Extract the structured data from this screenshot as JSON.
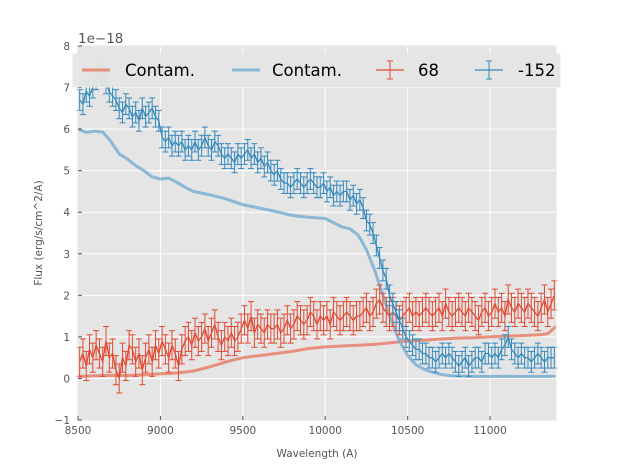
{
  "chart_data": {
    "type": "line",
    "title": "",
    "xlabel": "Wavelength (A)",
    "ylabel": "Flux (erg/s/cm^2/A)",
    "y_offset_label": "1e−18",
    "xlim": [
      8500,
      11400
    ],
    "ylim": [
      -1,
      8
    ],
    "y_scale_exponent": -18,
    "grid": true,
    "legend_placement": "top",
    "x_ticks": [
      8500,
      9000,
      9500,
      10000,
      10500,
      11000
    ],
    "y_ticks": [
      -1,
      0,
      1,
      2,
      3,
      4,
      5,
      6,
      7,
      8
    ],
    "series": [
      {
        "name": "Contam.",
        "kind": "line",
        "color": "#E5806A",
        "x": [
          8500,
          8650,
          8800,
          8950,
          9100,
          9200,
          9300,
          9400,
          9500,
          9600,
          9700,
          9800,
          9900,
          10000,
          10100,
          10200,
          10300,
          10400,
          10500,
          10600,
          10700,
          10800,
          10900,
          11000,
          11100,
          11200,
          11300,
          11350,
          11400
        ],
        "y": [
          0.05,
          0.07,
          0.07,
          0.1,
          0.13,
          0.18,
          0.28,
          0.4,
          0.5,
          0.55,
          0.6,
          0.65,
          0.72,
          0.76,
          0.78,
          0.8,
          0.82,
          0.86,
          0.9,
          0.92,
          0.95,
          0.97,
          0.98,
          1.0,
          1.02,
          1.03,
          1.05,
          1.08,
          1.25
        ]
      },
      {
        "name": "Contam.",
        "kind": "line",
        "color": "#7BAFD4",
        "x": [
          8500,
          8550,
          8600,
          8650,
          8700,
          8750,
          8800,
          8850,
          8900,
          8950,
          9000,
          9050,
          9100,
          9150,
          9200,
          9300,
          9400,
          9500,
          9600,
          9700,
          9800,
          9900,
          10000,
          10050,
          10100,
          10150,
          10200,
          10250,
          10300,
          10350,
          10400,
          10450,
          10500,
          10550,
          10600,
          10650,
          10700,
          10750,
          10800,
          10900,
          11000,
          11100,
          11200,
          11300,
          11400
        ],
        "y": [
          6.0,
          5.92,
          5.95,
          5.93,
          5.7,
          5.4,
          5.28,
          5.12,
          5.0,
          4.85,
          4.8,
          4.82,
          4.72,
          4.6,
          4.5,
          4.42,
          4.32,
          4.18,
          4.1,
          4.02,
          3.92,
          3.88,
          3.85,
          3.75,
          3.65,
          3.6,
          3.45,
          3.1,
          2.6,
          2.0,
          1.4,
          0.9,
          0.55,
          0.33,
          0.22,
          0.15,
          0.1,
          0.07,
          0.06,
          0.05,
          0.05,
          0.05,
          0.05,
          0.05,
          0.05
        ]
      },
      {
        "name": "68",
        "kind": "errorbar",
        "color": "#E24A33",
        "x": [
          8510,
          8530,
          8550,
          8570,
          8590,
          8610,
          8630,
          8650,
          8670,
          8690,
          8710,
          8730,
          8750,
          8770,
          8790,
          8810,
          8830,
          8850,
          8870,
          8890,
          8910,
          8930,
          8950,
          8970,
          8990,
          9010,
          9030,
          9050,
          9070,
          9090,
          9110,
          9130,
          9150,
          9170,
          9190,
          9210,
          9230,
          9250,
          9270,
          9290,
          9310,
          9330,
          9350,
          9370,
          9390,
          9410,
          9430,
          9450,
          9470,
          9490,
          9510,
          9530,
          9550,
          9570,
          9590,
          9610,
          9630,
          9650,
          9670,
          9690,
          9710,
          9730,
          9750,
          9770,
          9790,
          9810,
          9830,
          9850,
          9870,
          9890,
          9910,
          9930,
          9950,
          9970,
          9990,
          10010,
          10030,
          10050,
          10070,
          10090,
          10110,
          10130,
          10150,
          10170,
          10190,
          10210,
          10230,
          10250,
          10270,
          10290,
          10310,
          10330,
          10350,
          10370,
          10390,
          10410,
          10430,
          10450,
          10470,
          10490,
          10510,
          10530,
          10550,
          10570,
          10590,
          10610,
          10630,
          10650,
          10670,
          10690,
          10710,
          10730,
          10750,
          10770,
          10790,
          10810,
          10830,
          10850,
          10870,
          10890,
          10910,
          10930,
          10950,
          10970,
          10990,
          11010,
          11030,
          11050,
          11070,
          11090,
          11110,
          11130,
          11150,
          11170,
          11190,
          11210,
          11230,
          11250,
          11270,
          11290,
          11310,
          11330,
          11350,
          11370,
          11390
        ],
        "y": [
          0.4,
          0.6,
          0.3,
          0.7,
          0.5,
          0.8,
          0.6,
          0.4,
          0.9,
          0.5,
          0.6,
          0.2,
          0.0,
          0.5,
          0.3,
          0.8,
          0.7,
          0.4,
          0.6,
          0.2,
          0.5,
          0.7,
          0.4,
          0.8,
          0.6,
          0.9,
          0.7,
          0.5,
          0.8,
          0.6,
          0.3,
          0.7,
          0.9,
          1.0,
          0.8,
          1.1,
          0.9,
          1.0,
          1.2,
          0.9,
          1.1,
          1.3,
          1.0,
          0.8,
          1.0,
          0.9,
          1.1,
          0.9,
          1.0,
          1.2,
          1.4,
          1.2,
          1.5,
          1.1,
          1.3,
          1.2,
          1.1,
          1.3,
          1.2,
          1.2,
          1.3,
          1.1,
          1.2,
          1.4,
          1.2,
          1.3,
          1.5,
          1.4,
          1.3,
          1.4,
          1.6,
          1.5,
          1.3,
          1.5,
          1.4,
          1.5,
          1.3,
          1.6,
          1.5,
          1.4,
          1.5,
          1.6,
          1.5,
          1.4,
          1.5,
          1.5,
          1.6,
          1.7,
          1.5,
          1.6,
          1.8,
          1.9,
          1.7,
          1.6,
          1.5,
          1.6,
          1.5,
          1.4,
          1.5,
          1.6,
          1.7,
          1.5,
          1.6,
          1.5,
          1.6,
          1.7,
          1.6,
          1.5,
          1.6,
          1.7,
          1.5,
          1.8,
          1.6,
          1.5,
          1.6,
          1.7,
          1.6,
          1.5,
          1.7,
          1.6,
          1.5,
          1.4,
          1.6,
          1.7,
          1.5,
          1.6,
          1.8,
          1.6,
          1.7,
          1.5,
          1.9,
          1.7,
          1.6,
          1.8,
          1.7,
          1.6,
          1.8,
          1.7,
          1.6,
          1.5,
          1.7,
          1.9,
          1.6,
          1.8,
          2.0
        ],
        "err": 0.35
      },
      {
        "name": "-152",
        "kind": "errorbar",
        "color": "#348ABD",
        "x": [
          8510,
          8530,
          8550,
          8570,
          8590,
          8610,
          8630,
          8650,
          8670,
          8690,
          8710,
          8730,
          8750,
          8770,
          8790,
          8810,
          8830,
          8850,
          8870,
          8890,
          8910,
          8930,
          8950,
          8970,
          8990,
          9010,
          9030,
          9050,
          9070,
          9090,
          9110,
          9130,
          9150,
          9170,
          9190,
          9210,
          9230,
          9250,
          9270,
          9290,
          9310,
          9330,
          9350,
          9370,
          9390,
          9410,
          9430,
          9450,
          9470,
          9490,
          9510,
          9530,
          9550,
          9570,
          9590,
          9610,
          9630,
          9650,
          9670,
          9690,
          9710,
          9730,
          9750,
          9770,
          9790,
          9810,
          9830,
          9850,
          9870,
          9890,
          9910,
          9930,
          9950,
          9970,
          9990,
          10010,
          10030,
          10050,
          10070,
          10090,
          10110,
          10130,
          10150,
          10170,
          10190,
          10210,
          10230,
          10250,
          10270,
          10290,
          10310,
          10330,
          10350,
          10370,
          10390,
          10410,
          10430,
          10450,
          10470,
          10490,
          10510,
          10530,
          10550,
          10570,
          10590,
          10610,
          10630,
          10650,
          10670,
          10690,
          10710,
          10730,
          10750,
          10770,
          10790,
          10810,
          10830,
          10850,
          10870,
          10890,
          10910,
          10930,
          10950,
          10970,
          10990,
          11010,
          11030,
          11050,
          11070,
          11090,
          11110,
          11130,
          11150,
          11170,
          11190,
          11210,
          11230,
          11250,
          11270,
          11290,
          11310,
          11330,
          11350,
          11370,
          11390
        ],
        "y": [
          6.7,
          6.6,
          6.9,
          6.8,
          7.0,
          7.2,
          7.4,
          7.3,
          7.1,
          6.9,
          6.8,
          6.7,
          6.5,
          6.4,
          6.6,
          6.5,
          6.3,
          6.4,
          6.2,
          6.5,
          6.3,
          6.4,
          6.5,
          6.3,
          6.2,
          5.8,
          5.7,
          5.8,
          5.6,
          5.7,
          5.6,
          5.7,
          5.5,
          5.6,
          5.5,
          5.7,
          5.5,
          5.6,
          5.8,
          5.6,
          5.5,
          5.7,
          5.6,
          5.4,
          5.3,
          5.4,
          5.3,
          5.2,
          5.4,
          5.3,
          5.4,
          5.5,
          5.3,
          5.4,
          5.2,
          5.3,
          5.1,
          5.2,
          5.0,
          4.9,
          5.0,
          4.8,
          4.7,
          4.7,
          4.6,
          4.7,
          4.8,
          4.7,
          4.6,
          4.7,
          4.8,
          4.7,
          4.6,
          4.6,
          4.7,
          4.5,
          4.6,
          4.4,
          4.5,
          4.4,
          4.5,
          4.5,
          4.3,
          4.4,
          4.2,
          4.3,
          4.1,
          3.8,
          3.7,
          3.5,
          3.2,
          2.9,
          2.6,
          2.4,
          2.0,
          1.8,
          1.6,
          1.4,
          1.2,
          1.0,
          0.9,
          0.8,
          0.7,
          0.7,
          0.6,
          0.6,
          0.5,
          0.5,
          0.4,
          0.5,
          0.6,
          0.5,
          0.6,
          0.5,
          0.4,
          0.3,
          0.4,
          0.5,
          0.3,
          0.4,
          0.5,
          0.5,
          0.4,
          0.6,
          0.6,
          0.5,
          0.6,
          0.5,
          0.7,
          0.8,
          1.0,
          0.7,
          0.6,
          0.5,
          0.6,
          0.5,
          0.5,
          0.4,
          0.5,
          0.6,
          0.5,
          0.4,
          0.5,
          0.5,
          0.5
        ],
        "err": 0.25
      }
    ]
  }
}
